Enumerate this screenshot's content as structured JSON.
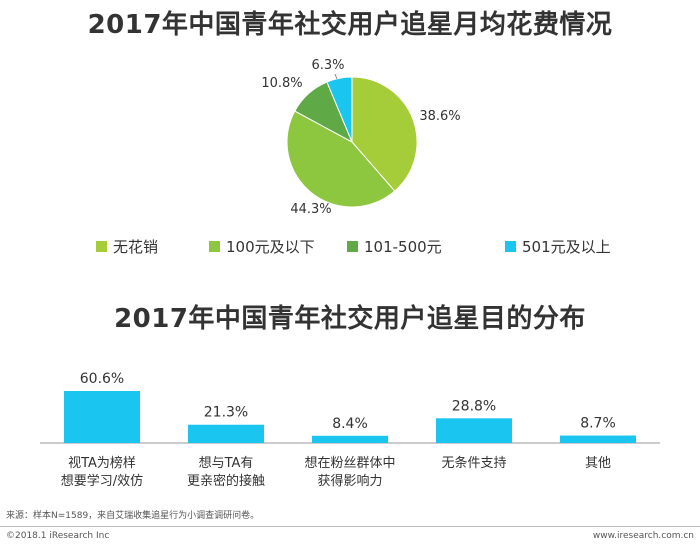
{
  "pie_title": "2017年中国青年社交用户追星月均花费情况",
  "bar_title": "2017年中国青年社交用户追星目的分布",
  "footer": {
    "source": "来源：样本N=1589，来自艾瑞收集追星行为小调查调研问卷。",
    "copyright": "©2018.1 iResearch Inc",
    "website": "www.iresearch.com.cn"
  },
  "chart_data": [
    {
      "type": "pie",
      "title": "2017年中国青年社交用户追星月均花费情况",
      "legend_position": "bottom",
      "slices": [
        {
          "name": "无花销",
          "value": 38.6,
          "label": "38.6%",
          "color": "#a5cd39"
        },
        {
          "name": "100元及以下",
          "value": 44.3,
          "label": "44.3%",
          "color": "#8dc63f"
        },
        {
          "name": "101-500元",
          "value": 10.8,
          "label": "10.8%",
          "color": "#5faa46"
        },
        {
          "name": "501元及以上",
          "value": 6.3,
          "label": "6.3%",
          "color": "#1ac6f0"
        }
      ]
    },
    {
      "type": "bar",
      "title": "2017年中国青年社交用户追星目的分布",
      "categories": [
        "视TA为榜样\n想要学习/效仿",
        "想与TA有\n更亲密的接触",
        "想在粉丝群体中\n获得影响力",
        "无条件支持",
        "其他"
      ],
      "values": [
        60.6,
        21.3,
        8.4,
        28.8,
        8.7
      ],
      "value_labels": [
        "60.6%",
        "21.3%",
        "8.4%",
        "28.8%",
        "8.7%"
      ],
      "color": "#1ac6f0",
      "ylim": [
        0,
        70
      ],
      "grid": false
    }
  ]
}
